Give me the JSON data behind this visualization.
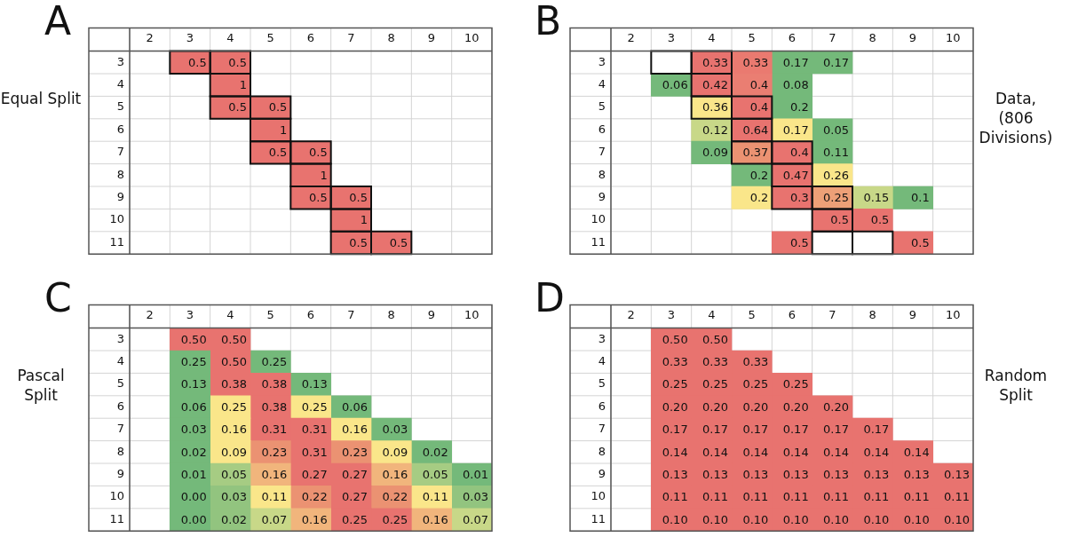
{
  "chart_data": [
    {
      "type": "heatmap",
      "title": "A",
      "ylabel": "Equal Split",
      "grid": true,
      "data_labels": true,
      "categories": [
        "2",
        "3",
        "4",
        "5",
        "6",
        "7",
        "8",
        "9",
        "10"
      ],
      "y_categories": [
        "3",
        "4",
        "5",
        "6",
        "7",
        "8",
        "9",
        "10",
        "11"
      ],
      "cells": [
        [
          null,
          0.5,
          0.5,
          null,
          null,
          null,
          null,
          null,
          null
        ],
        [
          null,
          null,
          1,
          null,
          null,
          null,
          null,
          null,
          null
        ],
        [
          null,
          null,
          0.5,
          0.5,
          null,
          null,
          null,
          null,
          null
        ],
        [
          null,
          null,
          null,
          1,
          null,
          null,
          null,
          null,
          null
        ],
        [
          null,
          null,
          null,
          0.5,
          0.5,
          null,
          null,
          null,
          null
        ],
        [
          null,
          null,
          null,
          null,
          1,
          null,
          null,
          null,
          null
        ],
        [
          null,
          null,
          null,
          null,
          0.5,
          0.5,
          null,
          null,
          null
        ],
        [
          null,
          null,
          null,
          null,
          null,
          1,
          null,
          null,
          null
        ],
        [
          null,
          null,
          null,
          null,
          null,
          0.5,
          0.5,
          null,
          null
        ]
      ],
      "colors": [
        [
          null,
          "#e8736f",
          "#e8736f",
          null,
          null,
          null,
          null,
          null,
          null
        ],
        [
          null,
          null,
          "#e8736f",
          null,
          null,
          null,
          null,
          null,
          null
        ],
        [
          null,
          null,
          "#e8736f",
          "#e8736f",
          null,
          null,
          null,
          null,
          null
        ],
        [
          null,
          null,
          null,
          "#e8736f",
          null,
          null,
          null,
          null,
          null
        ],
        [
          null,
          null,
          null,
          "#e8736f",
          "#e8736f",
          null,
          null,
          null,
          null
        ],
        [
          null,
          null,
          null,
          null,
          "#e8736f",
          null,
          null,
          null,
          null
        ],
        [
          null,
          null,
          null,
          null,
          "#e8736f",
          "#e8736f",
          null,
          null,
          null
        ],
        [
          null,
          null,
          null,
          null,
          null,
          "#e8736f",
          null,
          null,
          null
        ],
        [
          null,
          null,
          null,
          null,
          null,
          "#e8736f",
          "#e8736f",
          null,
          null
        ]
      ]
    },
    {
      "type": "heatmap",
      "title": "B",
      "y2label": "Data, (806 Divisions)",
      "grid": true,
      "data_labels": true,
      "categories": [
        "2",
        "3",
        "4",
        "5",
        "6",
        "7",
        "8",
        "9",
        "10"
      ],
      "y_categories": [
        "3",
        "4",
        "5",
        "6",
        "7",
        "8",
        "9",
        "10",
        "11"
      ],
      "cells": [
        [
          null,
          null,
          0.33,
          0.33,
          0.17,
          0.17,
          null,
          null,
          null
        ],
        [
          null,
          0.06,
          0.42,
          0.4,
          0.08,
          null,
          null,
          null,
          null
        ],
        [
          null,
          null,
          0.36,
          0.4,
          0.2,
          null,
          null,
          null,
          null
        ],
        [
          null,
          null,
          0.12,
          0.64,
          0.17,
          0.05,
          null,
          null,
          null
        ],
        [
          null,
          null,
          0.09,
          0.37,
          0.4,
          0.11,
          null,
          null,
          null
        ],
        [
          null,
          null,
          null,
          0.2,
          0.47,
          0.26,
          null,
          null,
          null
        ],
        [
          null,
          null,
          null,
          0.2,
          0.3,
          0.25,
          0.15,
          0.1,
          null
        ],
        [
          null,
          null,
          null,
          null,
          null,
          0.5,
          0.5,
          null,
          null
        ],
        [
          null,
          null,
          null,
          null,
          0.5,
          null,
          null,
          0.5,
          null
        ]
      ],
      "colors": [
        [
          null,
          null,
          "#e8736f",
          "#ea7a70",
          "#74b97a",
          "#74b97a",
          null,
          null,
          null
        ],
        [
          null,
          "#74b97a",
          "#e8736f",
          "#ea7e72",
          "#74b97a",
          null,
          null,
          null,
          null
        ],
        [
          null,
          null,
          "#fae68a",
          "#e8736f",
          "#74b97a",
          null,
          null,
          null,
          null
        ],
        [
          null,
          null,
          "#c8d888",
          "#e8736f",
          "#fae68a",
          "#74b97a",
          null,
          null,
          null
        ],
        [
          null,
          null,
          "#74b97a",
          "#eb9272",
          "#e8736f",
          "#74b97a",
          null,
          null,
          null
        ],
        [
          null,
          null,
          null,
          "#74b97a",
          "#e8736f",
          "#fae68a",
          null,
          null,
          null
        ],
        [
          null,
          null,
          null,
          "#fae68a",
          "#e8736f",
          "#eda077",
          "#c8d888",
          "#74b97a",
          null
        ],
        [
          null,
          null,
          null,
          null,
          null,
          "#e8736f",
          "#e8736f",
          null,
          null
        ],
        [
          null,
          null,
          null,
          null,
          "#e8736f",
          null,
          null,
          "#e8736f",
          null
        ]
      ]
    },
    {
      "type": "heatmap",
      "title": "C",
      "ylabel": "Pascal Split",
      "grid": true,
      "categories": [
        "2",
        "3",
        "4",
        "5",
        "6",
        "7",
        "8",
        "9",
        "10"
      ],
      "y_categories": [
        "3",
        "4",
        "5",
        "6",
        "7",
        "8",
        "9",
        "10",
        "11"
      ],
      "cells": [
        [
          null,
          0.5,
          0.5,
          null,
          null,
          null,
          null,
          null,
          null
        ],
        [
          null,
          0.25,
          0.5,
          0.25,
          null,
          null,
          null,
          null,
          null
        ],
        [
          null,
          0.13,
          0.38,
          0.38,
          0.13,
          null,
          null,
          null,
          null
        ],
        [
          null,
          0.06,
          0.25,
          0.38,
          0.25,
          0.06,
          null,
          null,
          null
        ],
        [
          null,
          0.03,
          0.16,
          0.31,
          0.31,
          0.16,
          0.03,
          null,
          null
        ],
        [
          null,
          0.02,
          0.09,
          0.23,
          0.31,
          0.23,
          0.09,
          0.02,
          null
        ],
        [
          null,
          0.01,
          0.05,
          0.16,
          0.27,
          0.27,
          0.16,
          0.05,
          0.01
        ],
        [
          null,
          0,
          0.03,
          0.11,
          0.22,
          0.27,
          0.22,
          0.11,
          0.03
        ],
        [
          null,
          0,
          0.02,
          0.07,
          0.16,
          0.25,
          0.25,
          0.16,
          0.07
        ]
      ],
      "cell_labels": [
        [
          null,
          "0.50",
          "0.50",
          null,
          null,
          null,
          null,
          null,
          null
        ],
        [
          null,
          "0.25",
          "0.50",
          "0.25",
          null,
          null,
          null,
          null,
          null
        ],
        [
          null,
          "0.13",
          "0.38",
          "0.38",
          "0.13",
          null,
          null,
          null,
          null
        ],
        [
          null,
          "0.06",
          "0.25",
          "0.38",
          "0.25",
          "0.06",
          null,
          null,
          null
        ],
        [
          null,
          "0.03",
          "0.16",
          "0.31",
          "0.31",
          "0.16",
          "0.03",
          null,
          null
        ],
        [
          null,
          "0.02",
          "0.09",
          "0.23",
          "0.31",
          "0.23",
          "0.09",
          "0.02",
          null
        ],
        [
          null,
          "0.01",
          "0.05",
          "0.16",
          "0.27",
          "0.27",
          "0.16",
          "0.05",
          "0.01"
        ],
        [
          null,
          "0.00",
          "0.03",
          "0.11",
          "0.22",
          "0.27",
          "0.22",
          "0.11",
          "0.03"
        ],
        [
          null,
          "0.00",
          "0.02",
          "0.07",
          "0.16",
          "0.25",
          "0.25",
          "0.16",
          "0.07"
        ]
      ],
      "colors": [
        [
          null,
          "#e8736f",
          "#e8736f",
          null,
          null,
          null,
          null,
          null,
          null
        ],
        [
          null,
          "#74b97a",
          "#e8736f",
          "#74b97a",
          null,
          null,
          null,
          null,
          null
        ],
        [
          null,
          "#74b97a",
          "#e8736f",
          "#e8736f",
          "#74b97a",
          null,
          null,
          null,
          null
        ],
        [
          null,
          "#74b97a",
          "#fae68a",
          "#e8736f",
          "#fae68a",
          "#74b97a",
          null,
          null,
          null
        ],
        [
          null,
          "#74b97a",
          "#fae68a",
          "#e8736f",
          "#e8736f",
          "#fae68a",
          "#74b97a",
          null,
          null
        ],
        [
          null,
          "#74b97a",
          "#fae68a",
          "#eb9272",
          "#e8736f",
          "#eb9272",
          "#fae68a",
          "#74b97a",
          null
        ],
        [
          null,
          "#74b97a",
          "#a6cc83",
          "#f1b57c",
          "#e8736f",
          "#e8736f",
          "#f1b57c",
          "#a6cc83",
          "#74b97a"
        ],
        [
          null,
          "#74b97a",
          "#92c47f",
          "#fae68a",
          "#eb9272",
          "#e8736f",
          "#eb9272",
          "#fae68a",
          "#92c47f"
        ],
        [
          null,
          "#74b97a",
          "#92c47f",
          "#c8d888",
          "#f1b57c",
          "#e8736f",
          "#e8736f",
          "#f1b57c",
          "#c8d888"
        ]
      ]
    },
    {
      "type": "heatmap",
      "title": "D",
      "y2label": "Random Split",
      "grid": true,
      "categories": [
        "2",
        "3",
        "4",
        "5",
        "6",
        "7",
        "8",
        "9",
        "10"
      ],
      "y_categories": [
        "3",
        "4",
        "5",
        "6",
        "7",
        "8",
        "9",
        "10",
        "11"
      ],
      "cells": [
        [
          null,
          0.5,
          0.5,
          null,
          null,
          null,
          null,
          null,
          null
        ],
        [
          null,
          0.33,
          0.33,
          0.33,
          null,
          null,
          null,
          null,
          null
        ],
        [
          null,
          0.25,
          0.25,
          0.25,
          0.25,
          null,
          null,
          null,
          null
        ],
        [
          null,
          0.2,
          0.2,
          0.2,
          0.2,
          0.2,
          null,
          null,
          null
        ],
        [
          null,
          0.17,
          0.17,
          0.17,
          0.17,
          0.17,
          0.17,
          null,
          null
        ],
        [
          null,
          0.14,
          0.14,
          0.14,
          0.14,
          0.14,
          0.14,
          0.14,
          null
        ],
        [
          null,
          0.13,
          0.13,
          0.13,
          0.13,
          0.13,
          0.13,
          0.13,
          0.13
        ],
        [
          null,
          0.11,
          0.11,
          0.11,
          0.11,
          0.11,
          0.11,
          0.11,
          0.11
        ],
        [
          null,
          0.1,
          0.1,
          0.1,
          0.1,
          0.1,
          0.1,
          0.1,
          0.1
        ]
      ],
      "cell_labels": [
        [
          null,
          "0.50",
          "0.50",
          null,
          null,
          null,
          null,
          null,
          null
        ],
        [
          null,
          "0.33",
          "0.33",
          "0.33",
          null,
          null,
          null,
          null,
          null
        ],
        [
          null,
          "0.25",
          "0.25",
          "0.25",
          "0.25",
          null,
          null,
          null,
          null
        ],
        [
          null,
          "0.20",
          "0.20",
          "0.20",
          "0.20",
          "0.20",
          null,
          null,
          null
        ],
        [
          null,
          "0.17",
          "0.17",
          "0.17",
          "0.17",
          "0.17",
          "0.17",
          null,
          null
        ],
        [
          null,
          "0.14",
          "0.14",
          "0.14",
          "0.14",
          "0.14",
          "0.14",
          "0.14",
          null
        ],
        [
          null,
          "0.13",
          "0.13",
          "0.13",
          "0.13",
          "0.13",
          "0.13",
          "0.13",
          "0.13"
        ],
        [
          null,
          "0.11",
          "0.11",
          "0.11",
          "0.11",
          "0.11",
          "0.11",
          "0.11",
          "0.11"
        ],
        [
          null,
          "0.10",
          "0.10",
          "0.10",
          "0.10",
          "0.10",
          "0.10",
          "0.10",
          "0.10"
        ]
      ],
      "colors": [
        [
          null,
          "#e8736f",
          "#e8736f",
          null,
          null,
          null,
          null,
          null,
          null
        ],
        [
          null,
          "#e8736f",
          "#e8736f",
          "#e8736f",
          null,
          null,
          null,
          null,
          null
        ],
        [
          null,
          "#e8736f",
          "#e8736f",
          "#e8736f",
          "#e8736f",
          null,
          null,
          null,
          null
        ],
        [
          null,
          "#e8736f",
          "#e8736f",
          "#e8736f",
          "#e8736f",
          "#e8736f",
          null,
          null,
          null
        ],
        [
          null,
          "#e8736f",
          "#e8736f",
          "#e8736f",
          "#e8736f",
          "#e8736f",
          "#e8736f",
          null,
          null
        ],
        [
          null,
          "#e8736f",
          "#e8736f",
          "#e8736f",
          "#e8736f",
          "#e8736f",
          "#e8736f",
          "#e8736f",
          null
        ],
        [
          null,
          "#e8736f",
          "#e8736f",
          "#e8736f",
          "#e8736f",
          "#e8736f",
          "#e8736f",
          "#e8736f",
          "#e8736f"
        ],
        [
          null,
          "#e8736f",
          "#e8736f",
          "#e8736f",
          "#e8736f",
          "#e8736f",
          "#e8736f",
          "#e8736f",
          "#e8736f"
        ],
        [
          null,
          "#e8736f",
          "#e8736f",
          "#e8736f",
          "#e8736f",
          "#e8736f",
          "#e8736f",
          "#e8736f",
          "#e8736f"
        ]
      ]
    }
  ]
}
